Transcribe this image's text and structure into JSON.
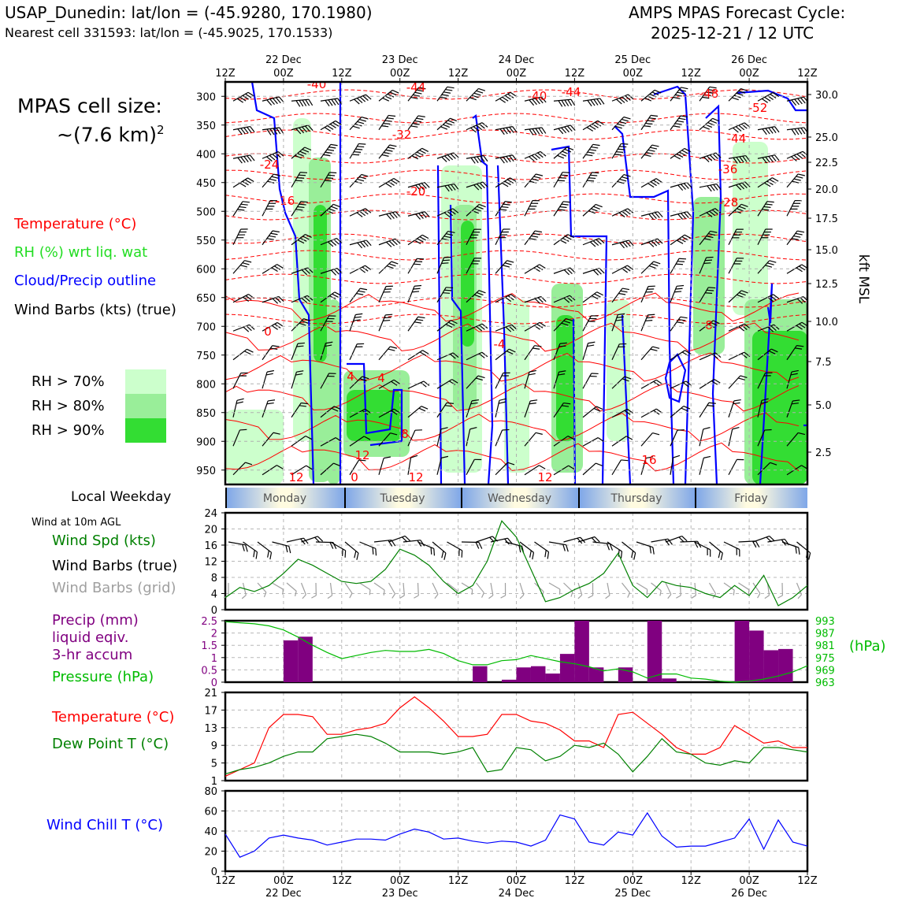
{
  "header": {
    "station_line": "USAP_Dunedin: lat/lon = (-45.9280, 170.1980)",
    "cell_line": "Nearest cell 331593: lat/lon = (-45.9025, 170.1533)",
    "title_line1": "AMPS MPAS Forecast Cycle:",
    "title_line2": "2025-12-21 / 12 UTC"
  },
  "cross_section": {
    "cell_size_label": "MPAS cell size:",
    "cell_size_value": "~(7.6 km)",
    "cell_size_sup": "2",
    "legend": [
      {
        "text": "Temperature (°C)",
        "color": "#ff0000"
      },
      {
        "text": "RH (%) wrt liq. wat",
        "color": "#22dd22"
      },
      {
        "text": "Cloud/Precip outline",
        "color": "#0000ff"
      },
      {
        "text": "Wind Barbs (kts) (true)",
        "color": "#000000"
      }
    ],
    "rh_key": [
      {
        "text": "RH > 70%",
        "color": "#ccffcc"
      },
      {
        "text": "RH > 80%",
        "color": "#99ee99"
      },
      {
        "text": "RH > 90%",
        "color": "#33dd33"
      }
    ],
    "pressure_ticks": [
      "300",
      "350",
      "400",
      "450",
      "500",
      "550",
      "600",
      "650",
      "700",
      "750",
      "800",
      "850",
      "900",
      "950"
    ],
    "kft_ticks": [
      "30.0",
      "25.0",
      "22.5",
      "20.0",
      "17.5",
      "15.0",
      "12.5",
      "10.0",
      "7.5",
      "5.0",
      "2.5"
    ],
    "kft_label": "kft MSL",
    "temp_labels": [
      "-40",
      "-44",
      "-40",
      "-44",
      "-48",
      "-52",
      "-32",
      "-44",
      "-36",
      "-24",
      "-20",
      "-16",
      "-28",
      "-4",
      "0",
      "8",
      "4",
      "4",
      "8",
      "12",
      "12",
      "12",
      "16",
      "12",
      "0"
    ]
  },
  "time_axis": {
    "top_hours": [
      "12Z",
      "00Z",
      "12Z",
      "00Z",
      "12Z",
      "00Z",
      "12Z",
      "00Z",
      "12Z",
      "00Z",
      "12Z"
    ],
    "days": [
      "22 Dec",
      "23 Dec",
      "24 Dec",
      "25 Dec",
      "26 Dec"
    ],
    "weekday_label": "Local Weekday",
    "weekdays": [
      "Monday",
      "Tuesday",
      "Wednesday",
      "Thursday",
      "Friday"
    ],
    "bottom_hours": [
      "12Z",
      "00Z",
      "12Z",
      "00Z",
      "12Z",
      "00Z",
      "12Z",
      "00Z",
      "12Z",
      "00Z",
      "12Z"
    ]
  },
  "wind_panel": {
    "header": "Wind at 10m AGL",
    "label_speed": "Wind Spd (kts)",
    "label_true": "Wind Barbs (true)",
    "label_grid": "Wind Barbs (grid)",
    "colors": {
      "speed": "#008000",
      "true": "#000000",
      "grid": "#a0a0a0"
    }
  },
  "precip_panel": {
    "labels": [
      "Precip (mm)",
      "liquid eqiv.",
      "3-hr accum"
    ],
    "pressure_label": "Pressure (hPa)",
    "right_unit": "(hPa)",
    "colors": {
      "precip": "#800080",
      "pressure": "#00bb00"
    }
  },
  "temp_panel": {
    "label_temp": "Temperature (°C)",
    "label_dew": "Dew Point T (°C)",
    "colors": {
      "temp": "#ff0000",
      "dew": "#008000"
    }
  },
  "chill_panel": {
    "label": "Wind Chill T (°C)",
    "color": "#0000ff"
  },
  "chart_data": [
    {
      "type": "line",
      "panel": "surface wind",
      "x_hours": [
        0,
        3,
        6,
        9,
        12,
        15,
        18,
        21,
        24,
        27,
        30,
        33,
        36,
        39,
        42,
        45,
        48,
        51,
        54,
        57,
        60,
        63,
        66,
        69,
        72,
        75,
        78,
        81,
        84,
        87,
        90,
        93,
        96,
        99,
        102,
        105,
        108,
        111,
        114,
        117,
        120
      ],
      "series": [
        {
          "name": "Wind Spd (kts)",
          "values": [
            3,
            5.5,
            4.5,
            6,
            9,
            12.5,
            11,
            9,
            7,
            6.5,
            7,
            10,
            15,
            13.5,
            11,
            7,
            4,
            6,
            12,
            22,
            18,
            10,
            2,
            3,
            5,
            6.5,
            9,
            14,
            6,
            3,
            7,
            6,
            5.5,
            4,
            3,
            6,
            3.5,
            8.5,
            1,
            3,
            6
          ]
        }
      ],
      "ylim": [
        0,
        24
      ],
      "yticks": [
        0,
        4,
        8,
        12,
        16,
        20,
        24
      ]
    },
    {
      "type": "bar",
      "panel": "precip and pressure",
      "x_hours": [
        0,
        3,
        6,
        9,
        12,
        15,
        18,
        21,
        24,
        27,
        30,
        33,
        36,
        39,
        42,
        45,
        48,
        51,
        54,
        57,
        60,
        63,
        66,
        69,
        72,
        75,
        78,
        81,
        84,
        87,
        90,
        93,
        96,
        99,
        102,
        105,
        108,
        111,
        114,
        117,
        120
      ],
      "series": [
        {
          "name": "Precip (mm)",
          "values": [
            0,
            0,
            0,
            0,
            0,
            1.7,
            1.85,
            0,
            0,
            0,
            0,
            0,
            0,
            0,
            0,
            0,
            0,
            0,
            0.65,
            0,
            0.1,
            0.6,
            0.65,
            0.35,
            1.15,
            2.5,
            0.6,
            0,
            0.6,
            0,
            2.5,
            0.15,
            0,
            0,
            0,
            0,
            2.5,
            2.1,
            1.3,
            1.35,
            0
          ],
          "ylim": [
            0,
            2.5
          ],
          "yticks": [
            0,
            0.5,
            1.0,
            1.5,
            2.0,
            2.5
          ]
        },
        {
          "name": "Pressure (hPa)",
          "values": [
            992.5,
            992,
            991.5,
            990.5,
            988.5,
            985,
            981,
            977.5,
            974.5,
            976,
            977.5,
            978.5,
            978,
            978,
            979,
            977,
            973.5,
            971.5,
            971.5,
            973.5,
            974,
            976,
            974.5,
            973,
            972,
            970.5,
            968.5,
            969.5,
            968,
            965,
            967,
            967,
            965,
            964.5,
            963.5,
            963,
            963.5,
            964.5,
            966,
            968,
            971
          ],
          "ylim": [
            963,
            993
          ],
          "yticks": [
            963,
            969,
            975,
            981,
            987,
            993
          ]
        }
      ]
    },
    {
      "type": "line",
      "panel": "temperature",
      "x_hours": [
        0,
        3,
        6,
        9,
        12,
        15,
        18,
        21,
        24,
        27,
        30,
        33,
        36,
        39,
        42,
        45,
        48,
        51,
        54,
        57,
        60,
        63,
        66,
        69,
        72,
        75,
        78,
        81,
        84,
        87,
        90,
        93,
        96,
        99,
        102,
        105,
        108,
        111,
        114,
        117,
        120
      ],
      "series": [
        {
          "name": "Temperature (°C)",
          "values": [
            2,
            3.5,
            5,
            13,
            16,
            16,
            15.5,
            11.5,
            11.5,
            12.5,
            13,
            14,
            17.5,
            20,
            17.5,
            14.5,
            11,
            11,
            11.5,
            16,
            16,
            14.5,
            14,
            12.5,
            10,
            10,
            8.5,
            16,
            16.5,
            14,
            11.5,
            8.5,
            7,
            7,
            8.5,
            13.5,
            11.5,
            9.5,
            10,
            8.5,
            8.5
          ]
        },
        {
          "name": "Dew Point T (°C)",
          "values": [
            2.5,
            3.5,
            4,
            5,
            6.5,
            7.5,
            7.5,
            10.5,
            11,
            11.5,
            11,
            9.5,
            7.5,
            7.5,
            7.5,
            7,
            7.5,
            8.5,
            3,
            3.5,
            8.5,
            8,
            5.5,
            6.5,
            9,
            8.5,
            9.5,
            7,
            3,
            6.5,
            10.5,
            7.5,
            7,
            5,
            4.5,
            5.5,
            5,
            8.5,
            8.5,
            8,
            7.5
          ]
        }
      ],
      "ylim": [
        1,
        21
      ],
      "yticks": [
        1,
        5,
        9,
        13,
        17,
        21
      ]
    },
    {
      "type": "line",
      "panel": "wind chill",
      "x_hours": [
        0,
        3,
        6,
        9,
        12,
        15,
        18,
        21,
        24,
        27,
        30,
        33,
        36,
        39,
        42,
        45,
        48,
        51,
        54,
        57,
        60,
        63,
        66,
        69,
        72,
        75,
        78,
        81,
        84,
        87,
        90,
        93,
        96,
        99,
        102,
        105,
        108,
        111,
        114,
        117,
        120
      ],
      "series": [
        {
          "name": "Wind Chill T (°C)",
          "values": [
            37,
            14,
            20,
            33,
            36,
            33,
            31,
            26,
            29,
            32,
            32,
            31,
            37,
            42,
            39,
            32,
            33,
            30,
            28,
            30,
            29,
            25,
            31,
            56,
            52,
            29,
            26,
            39,
            36,
            58,
            35,
            24,
            25,
            25,
            29,
            33,
            52,
            22,
            51,
            29,
            25
          ]
        }
      ],
      "ylim": [
        0,
        80
      ],
      "yticks": [
        0,
        20,
        40,
        60,
        80
      ]
    }
  ]
}
